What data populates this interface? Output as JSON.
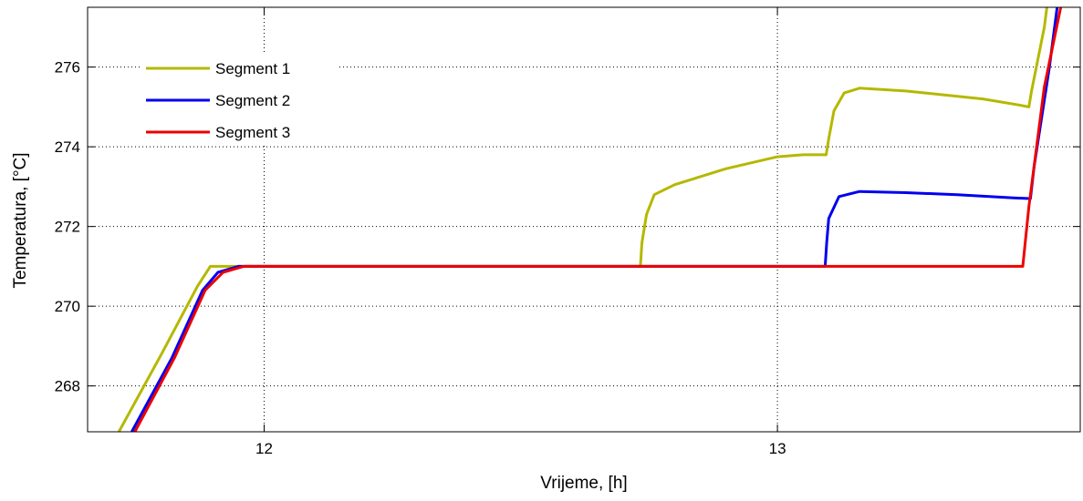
{
  "chart_data": {
    "type": "line",
    "xlabel": "Vrijeme, [h]",
    "ylabel": "Temperatura, [°C]",
    "xlim": [
      11.656,
      13.59
    ],
    "ylim": [
      266.85,
      277.5
    ],
    "x_ticks": [
      12,
      13
    ],
    "x_tick_labels": [
      "12",
      "13"
    ],
    "y_ticks": [
      268,
      270,
      272,
      274,
      276
    ],
    "y_tick_labels": [
      "268",
      "270",
      "272",
      "274",
      "276"
    ],
    "grid": true,
    "grid_style": "dotted",
    "legend_position": "top-left",
    "series": [
      {
        "name": "Segment 1",
        "color": "#b5b800",
        "points": [
          [
            11.717,
            266.85
          ],
          [
            11.8,
            268.8
          ],
          [
            11.87,
            270.5
          ],
          [
            11.895,
            271.0
          ],
          [
            11.97,
            271.0
          ],
          [
            12.733,
            271.0
          ],
          [
            12.736,
            271.6
          ],
          [
            12.745,
            272.3
          ],
          [
            12.76,
            272.8
          ],
          [
            12.8,
            273.05
          ],
          [
            12.9,
            273.45
          ],
          [
            13.0,
            273.75
          ],
          [
            13.05,
            273.8
          ],
          [
            13.095,
            273.8
          ],
          [
            13.1,
            274.2
          ],
          [
            13.11,
            274.9
          ],
          [
            13.13,
            275.35
          ],
          [
            13.16,
            275.47
          ],
          [
            13.25,
            275.4
          ],
          [
            13.4,
            275.2
          ],
          [
            13.47,
            275.05
          ],
          [
            13.49,
            275.0
          ],
          [
            13.495,
            275.4
          ],
          [
            13.52,
            277.0
          ],
          [
            13.525,
            277.5
          ]
        ]
      },
      {
        "name": "Segment 2",
        "color": "#0000ee",
        "points": [
          [
            11.742,
            266.85
          ],
          [
            11.82,
            268.7
          ],
          [
            11.88,
            270.4
          ],
          [
            11.91,
            270.85
          ],
          [
            11.95,
            271.0
          ],
          [
            13.093,
            271.0
          ],
          [
            13.096,
            271.6
          ],
          [
            13.1,
            272.2
          ],
          [
            13.12,
            272.75
          ],
          [
            13.16,
            272.88
          ],
          [
            13.25,
            272.85
          ],
          [
            13.35,
            272.8
          ],
          [
            13.46,
            272.72
          ],
          [
            13.493,
            272.7
          ],
          [
            13.5,
            273.5
          ],
          [
            13.53,
            276.0
          ],
          [
            13.545,
            277.5
          ]
        ]
      },
      {
        "name": "Segment 3",
        "color": "#ee0000",
        "points": [
          [
            11.748,
            266.85
          ],
          [
            11.825,
            268.7
          ],
          [
            11.885,
            270.4
          ],
          [
            11.92,
            270.85
          ],
          [
            11.96,
            271.0
          ],
          [
            13.468,
            271.0
          ],
          [
            13.478,
            271.0
          ],
          [
            13.49,
            272.5
          ],
          [
            13.52,
            275.5
          ],
          [
            13.552,
            277.5
          ]
        ]
      }
    ]
  }
}
